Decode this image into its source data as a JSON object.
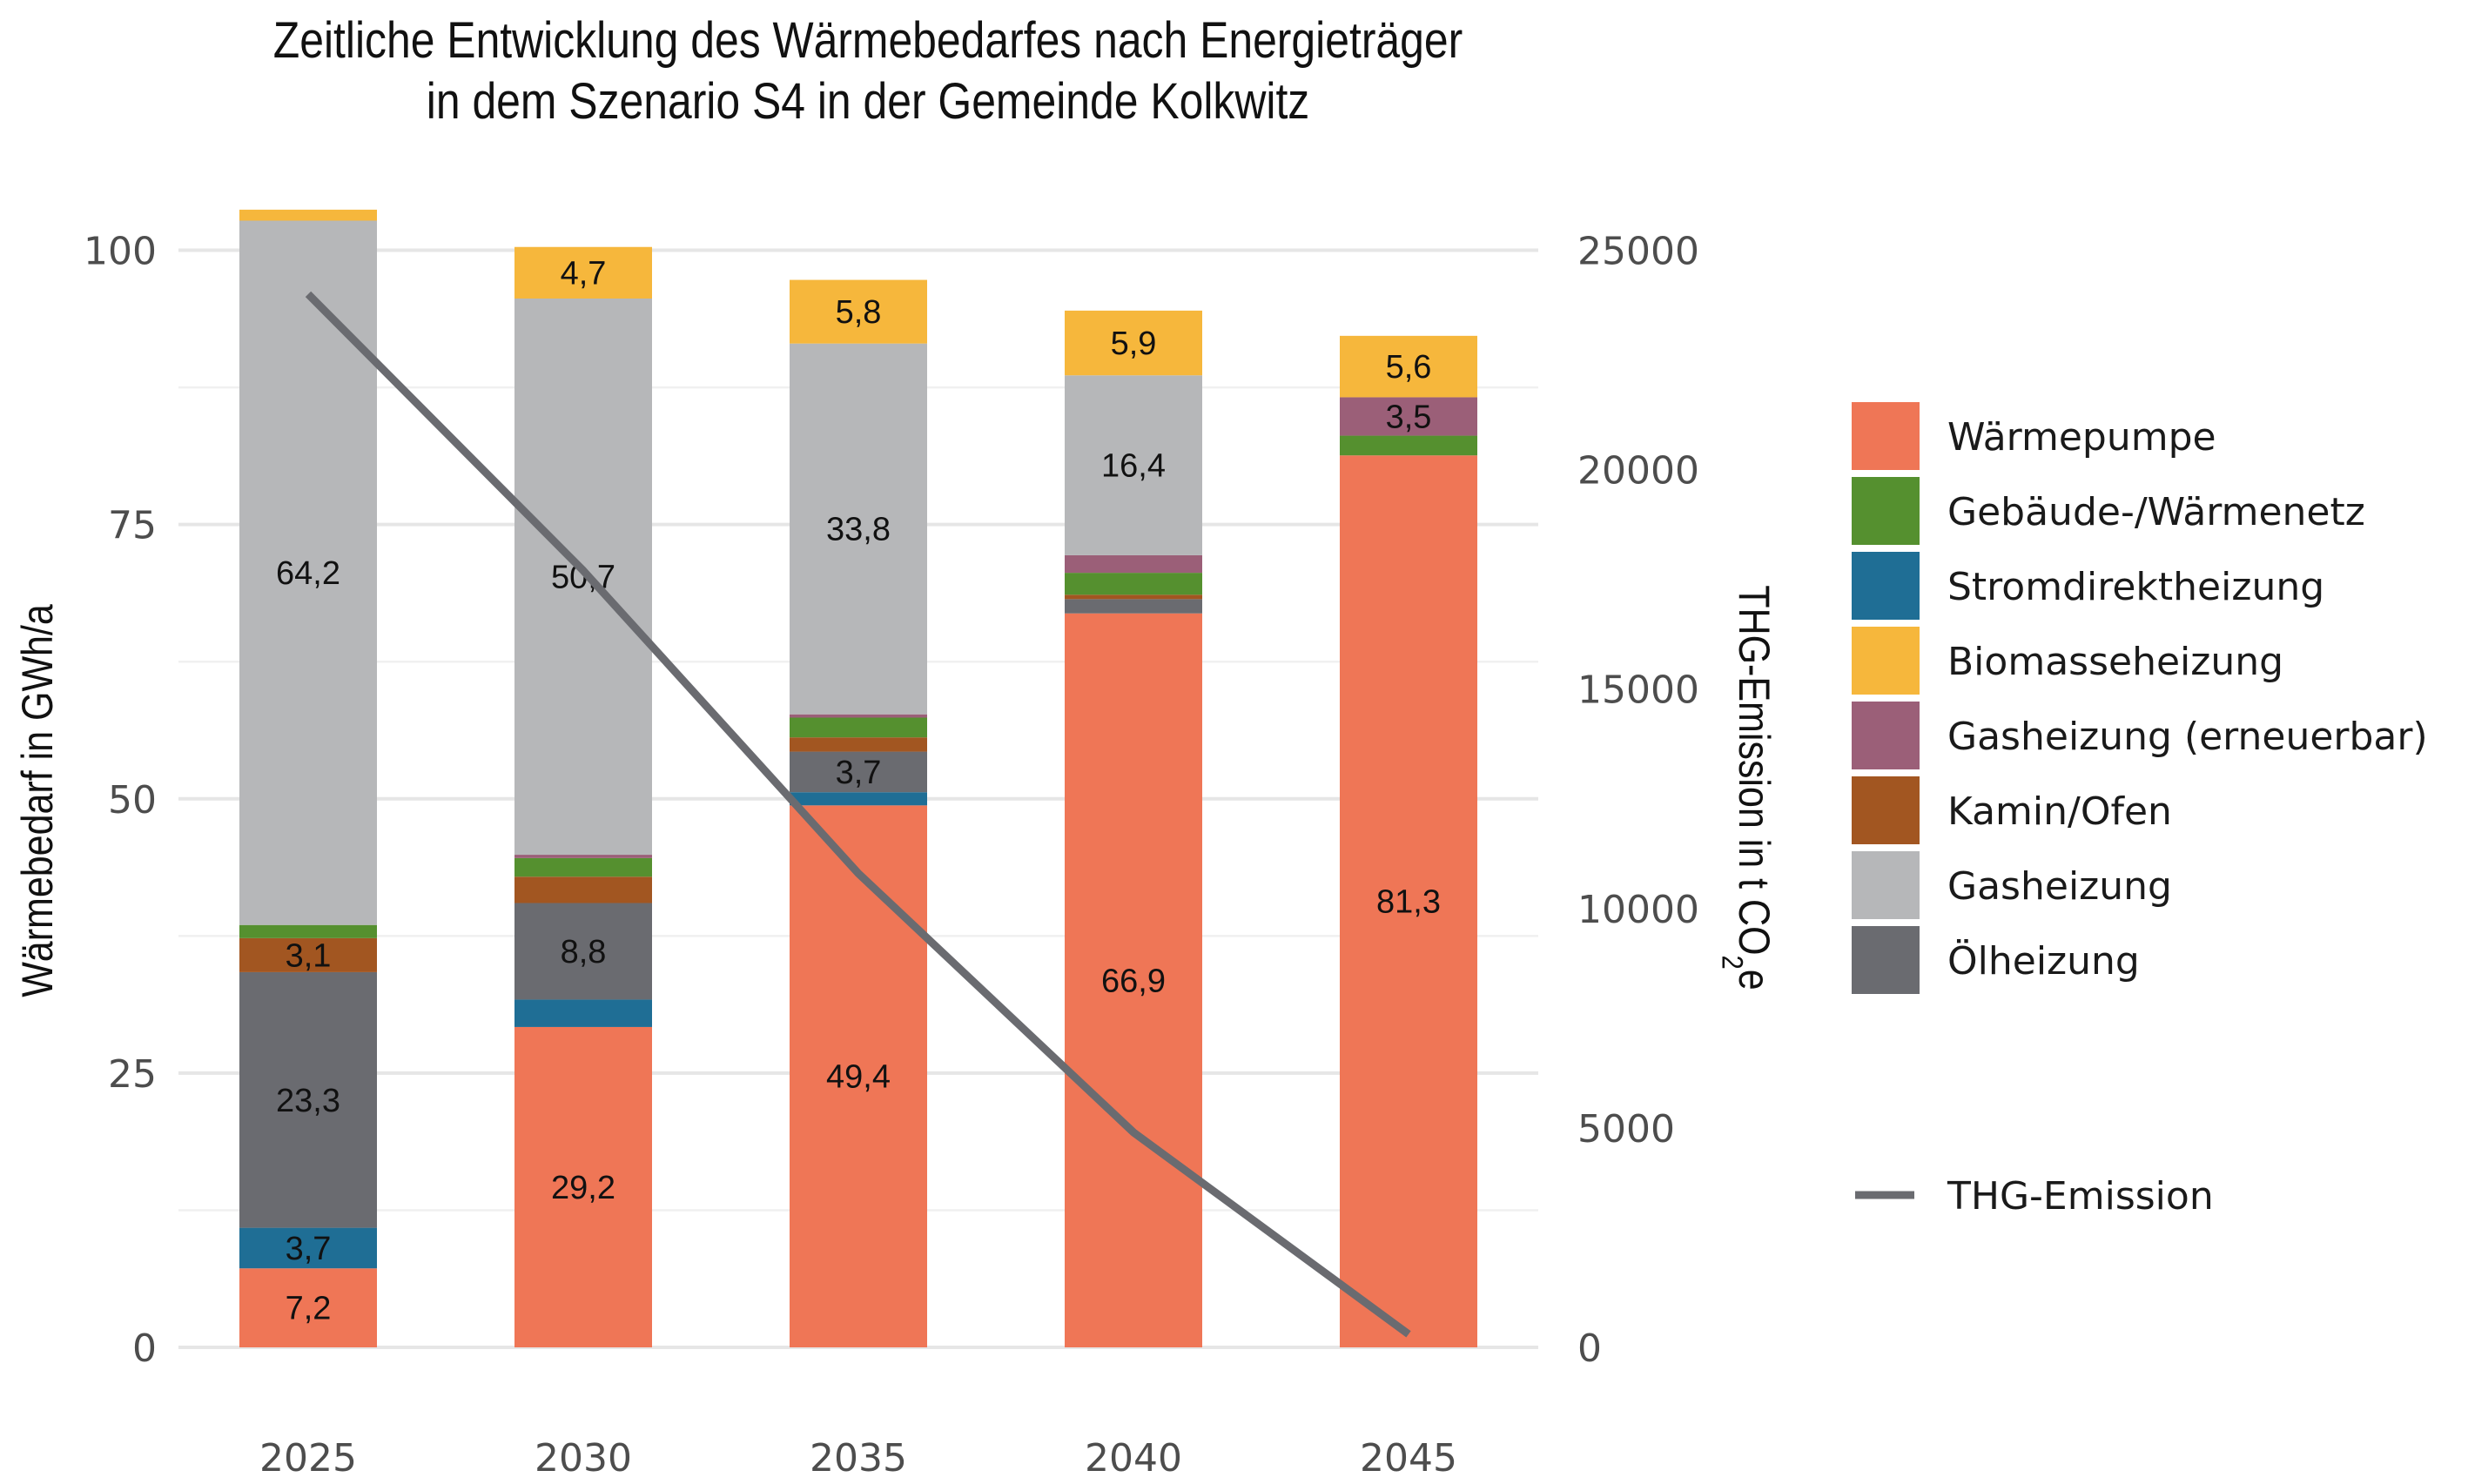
{
  "chart_data": {
    "type": "bar",
    "stacked": true,
    "title": [
      "Zeitliche Entwicklung des Wärmebedarfes nach Energieträger",
      "in dem Szenario S4   in der Gemeinde Kolkwitz"
    ],
    "categories": [
      "2025",
      "2030",
      "2035",
      "2040",
      "2045"
    ],
    "xlabel": "",
    "ylabel": "Wärmebedarf in GWh/a",
    "ylim": [
      0,
      107.5
    ],
    "yticks": [
      0,
      25,
      50,
      75,
      100
    ],
    "ytick_labels": [
      "0",
      "25",
      "50",
      "75",
      "100"
    ],
    "y2label_main": "THG-Emission in t CO",
    "y2label_sub": "2",
    "y2label_end": "e",
    "y2lim": [
      0,
      26875
    ],
    "y2ticks": [
      0,
      5000,
      10000,
      15000,
      20000,
      25000
    ],
    "y2tick_labels": [
      "0",
      "5000",
      "10000",
      "15000",
      "20000",
      "25000"
    ],
    "grid": true,
    "legend_position": "right",
    "series": [
      {
        "name": "Wärmepumpe",
        "color": "#EF7656",
        "values": [
          7.2,
          29.2,
          49.4,
          66.9,
          81.3
        ],
        "labels": [
          "7,2",
          "29,2",
          "49,4",
          "66,9",
          "81,3"
        ]
      },
      {
        "name": "Stromdirektheizung",
        "color": "#1F6E95",
        "values": [
          3.7,
          2.5,
          1.2,
          0.0,
          0.0
        ],
        "labels": [
          "3,7",
          "",
          "",
          "",
          ""
        ]
      },
      {
        "name": "Ölheizung",
        "color": "#6A6B70",
        "values": [
          23.3,
          8.8,
          3.7,
          1.3,
          0.0
        ],
        "labels": [
          "23,3",
          "8,8",
          "3,7",
          "",
          ""
        ]
      },
      {
        "name": "Kamin/Ofen",
        "color": "#A25621",
        "values": [
          3.1,
          2.4,
          1.3,
          0.4,
          0.0
        ],
        "labels": [
          "3,1",
          "",
          "",
          "",
          ""
        ]
      },
      {
        "name": "Gebäude-/Wärmenetz",
        "color": "#55902F",
        "values": [
          1.2,
          1.7,
          1.8,
          2.0,
          1.8
        ],
        "labels": [
          "",
          "",
          "",
          "",
          ""
        ]
      },
      {
        "name": "Gasheizung (erneuerbar)",
        "color": "#9B5F78",
        "values": [
          0.0,
          0.3,
          0.3,
          1.6,
          3.5
        ],
        "labels": [
          "",
          "",
          "",
          "",
          "3,5"
        ]
      },
      {
        "name": "Gasheizung",
        "color": "#B6B7B9",
        "values": [
          64.2,
          50.7,
          33.8,
          16.4,
          0.0
        ],
        "labels": [
          "64,2",
          "50,7",
          "33,8",
          "16,4",
          ""
        ]
      },
      {
        "name": "Biomasseheizung",
        "color": "#F6B73C",
        "values": [
          1.0,
          4.7,
          5.8,
          5.9,
          5.6
        ],
        "labels": [
          "",
          "4,7",
          "5,8",
          "5,9",
          "5,6"
        ]
      }
    ],
    "line_series": {
      "name": "THG-Emission",
      "color": "#6A6B70",
      "axis": "right",
      "values": [
        24000,
        17700,
        10800,
        4900,
        300
      ]
    },
    "legend": [
      {
        "name": "Wärmepumpe",
        "color": "#EF7656"
      },
      {
        "name": "Gebäude-/Wärmenetz",
        "color": "#55902F"
      },
      {
        "name": "Stromdirektheizung",
        "color": "#1F6E95"
      },
      {
        "name": "Biomasseheizung",
        "color": "#F6B73C"
      },
      {
        "name": "Gasheizung (erneuerbar)",
        "color": "#9B5F78"
      },
      {
        "name": "Kamin/Ofen",
        "color": "#A25621"
      },
      {
        "name": "Gasheizung",
        "color": "#B6B7B9"
      },
      {
        "name": "Ölheizung",
        "color": "#6A6B70"
      }
    ],
    "line_legend": {
      "name": "THG-Emission",
      "color": "#6A6B70"
    }
  }
}
